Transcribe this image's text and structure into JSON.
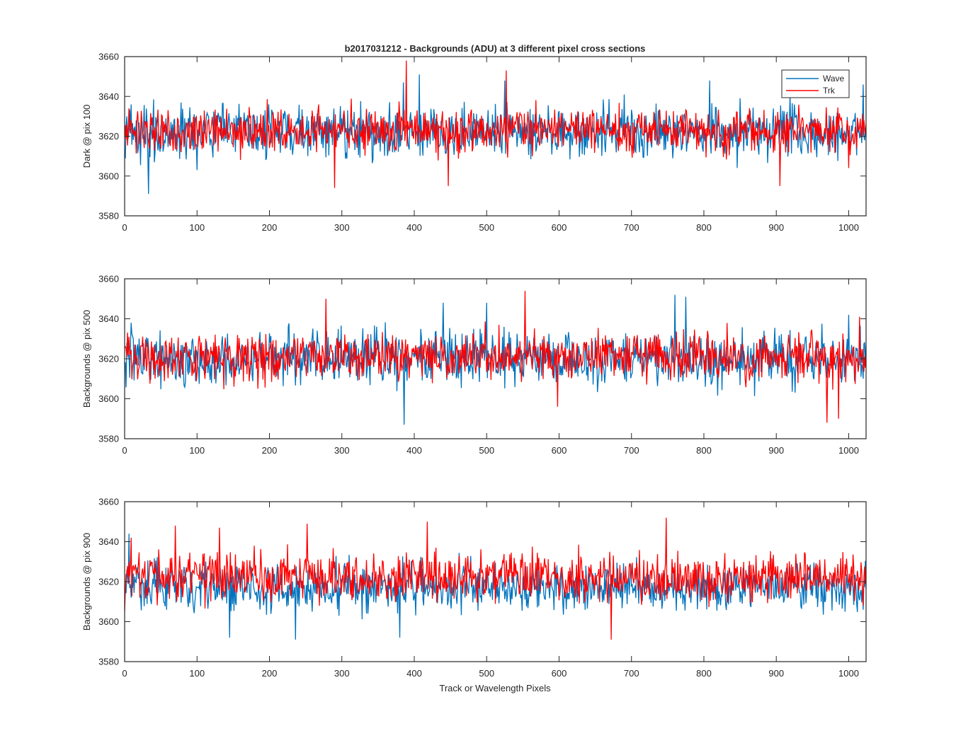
{
  "figure": {
    "title": "b2017031212 - Backgrounds (ADU) at 3 different pixel cross sections",
    "xlabel": "Track or Wavelength Pixels"
  },
  "legend": {
    "placement": "top-right (first panel)",
    "entries": [
      {
        "label": "Wave",
        "color": "#0072BD"
      },
      {
        "label": "Trk",
        "color": "#FF0000"
      }
    ]
  },
  "colors": {
    "wave": "#0072BD",
    "trk": "#FF0000",
    "axis": "#262626",
    "background": "#ffffff"
  },
  "chart_data": [
    {
      "type": "line",
      "ylabel": "Dark @ pix 100",
      "xlim": [
        0,
        1024
      ],
      "ylim": [
        3580,
        3660
      ],
      "x_ticks": [
        0,
        100,
        200,
        300,
        400,
        500,
        600,
        700,
        800,
        900,
        1000
      ],
      "y_ticks": [
        3580,
        3600,
        3620,
        3640,
        3660
      ],
      "grid": false,
      "series": [
        {
          "name": "Wave",
          "mean": 3622,
          "noise_amplitude": 9,
          "start": [
            [
              0,
              3612
            ],
            [
              3,
              3630
            ],
            [
              6,
              3624
            ],
            [
              9,
              3636
            ]
          ],
          "extremes": [
            [
              33,
              3591
            ],
            [
              100,
              3603
            ],
            [
              385,
              3647
            ],
            [
              407,
              3651
            ],
            [
              525,
              3648
            ],
            [
              808,
              3648
            ],
            [
              1020,
              3646
            ]
          ]
        },
        {
          "name": "Trk",
          "mean": 3623,
          "noise_amplitude": 8,
          "start": [
            [
              0,
              3619
            ],
            [
              3,
              3626
            ],
            [
              6,
              3634
            ],
            [
              9,
              3628
            ]
          ],
          "extremes": [
            [
              290,
              3594
            ],
            [
              389,
              3658
            ],
            [
              447,
              3595
            ],
            [
              527,
              3653
            ],
            [
              1000,
              3604
            ],
            [
              905,
              3595
            ]
          ]
        }
      ]
    },
    {
      "type": "line",
      "ylabel": "Backgrounds @ pix 500",
      "xlim": [
        0,
        1024
      ],
      "ylim": [
        3580,
        3660
      ],
      "x_ticks": [
        0,
        100,
        200,
        300,
        400,
        500,
        600,
        700,
        800,
        900,
        1000
      ],
      "y_ticks": [
        3580,
        3600,
        3620,
        3640,
        3660
      ],
      "grid": false,
      "series": [
        {
          "name": "Wave",
          "mean": 3620,
          "noise_amplitude": 9,
          "start": [
            [
              0,
              3618
            ],
            [
              3,
              3628
            ],
            [
              6,
              3622
            ],
            [
              9,
              3638
            ]
          ],
          "extremes": [
            [
              386,
              3587
            ],
            [
              440,
              3648
            ],
            [
              500,
              3648
            ],
            [
              760,
              3652
            ],
            [
              775,
              3651
            ],
            [
              1000,
              3642
            ],
            [
              1020,
              3610
            ]
          ]
        },
        {
          "name": "Trk",
          "mean": 3621,
          "noise_amplitude": 8,
          "start": [
            [
              0,
              3626
            ],
            [
              3,
              3621
            ],
            [
              6,
              3631
            ],
            [
              9,
              3624
            ]
          ],
          "extremes": [
            [
              278,
              3650
            ],
            [
              553,
              3654
            ],
            [
              598,
              3596
            ],
            [
              970,
              3588
            ],
            [
              986,
              3590
            ],
            [
              1015,
              3641
            ]
          ]
        }
      ]
    },
    {
      "type": "line",
      "ylabel": "Backgrounds @ pix 900",
      "xlim": [
        0,
        1024
      ],
      "ylim": [
        3580,
        3660
      ],
      "x_ticks": [
        0,
        100,
        200,
        300,
        400,
        500,
        600,
        700,
        800,
        900,
        1000
      ],
      "y_ticks": [
        3580,
        3600,
        3620,
        3640,
        3660
      ],
      "grid": false,
      "series": [
        {
          "name": "Wave",
          "mean": 3617,
          "noise_amplitude": 8,
          "start": [
            [
              0,
              3610
            ],
            [
              3,
              3626
            ],
            [
              6,
              3644
            ],
            [
              9,
              3612
            ]
          ],
          "extremes": [
            [
              236,
              3591
            ],
            [
              380,
              3592
            ],
            [
              145,
              3592
            ],
            [
              1020,
              3606
            ]
          ]
        },
        {
          "name": "Trk",
          "mean": 3622,
          "noise_amplitude": 8,
          "start": [
            [
              0,
              3605
            ],
            [
              3,
              3624
            ],
            [
              6,
              3630
            ],
            [
              9,
              3642
            ]
          ],
          "extremes": [
            [
              70,
              3648
            ],
            [
              131,
              3647
            ],
            [
              252,
              3649
            ],
            [
              418,
              3650
            ],
            [
              672,
              3591
            ],
            [
              748,
              3652
            ],
            [
              1020,
              3608
            ]
          ]
        }
      ]
    }
  ]
}
